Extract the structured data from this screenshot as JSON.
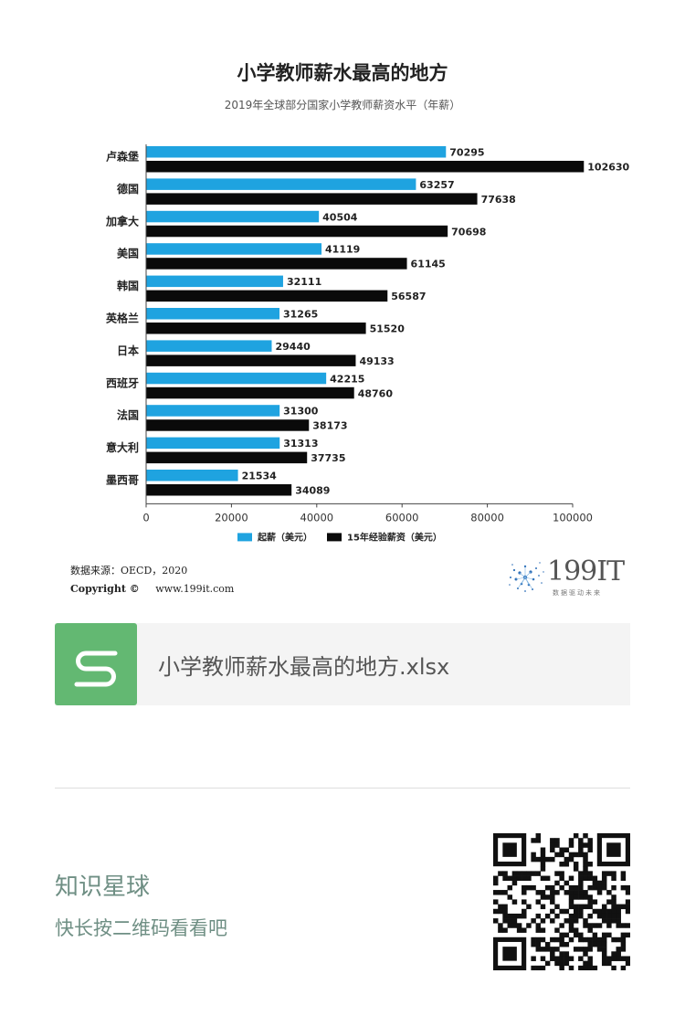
{
  "chart": {
    "title": "小学教师薪水最高的地方",
    "subtitle": "2019年全球部分国家小学教师薪资水平（年薪）"
  },
  "chart_data": {
    "type": "bar",
    "orientation": "horizontal",
    "title": "小学教师薪水最高的地方",
    "subtitle": "2019年全球部分国家小学教师薪资水平（年薪）",
    "categories": [
      "卢森堡",
      "德国",
      "加拿大",
      "美国",
      "韩国",
      "英格兰",
      "日本",
      "西班牙",
      "法国",
      "意大利",
      "墨西哥"
    ],
    "series": [
      {
        "name": "起薪（美元）",
        "color": "#1fa3e0",
        "values": [
          70295,
          63257,
          40504,
          41119,
          32111,
          31265,
          29440,
          42215,
          31300,
          31313,
          21534
        ]
      },
      {
        "name": "15年经验薪资（美元）",
        "color": "#0a0a0a",
        "values": [
          102630,
          77638,
          70698,
          61145,
          56587,
          51520,
          49133,
          48760,
          38173,
          37735,
          34089
        ]
      }
    ],
    "xlim": [
      0,
      100000
    ],
    "xticks": [
      0,
      20000,
      40000,
      60000,
      80000,
      100000
    ],
    "xlabel": "",
    "ylabel": "",
    "legend_position": "bottom",
    "grid": false,
    "data_labels": true
  },
  "footer": {
    "source": "数据来源：OECD，2020",
    "copyright_label": "Copyright ©",
    "website": "www.199it.com",
    "logo_text": "199IT",
    "logo_tagline": "数据驱动未来"
  },
  "attachment": {
    "filename": "小学教师薪水最高的地方.xlsx",
    "icon_color": "#63b872",
    "icon": "spreadsheet-s-icon"
  },
  "promo": {
    "title": "知识星球",
    "subtitle": "快长按二维码看看吧",
    "qr_icon": "qr-code-icon"
  }
}
